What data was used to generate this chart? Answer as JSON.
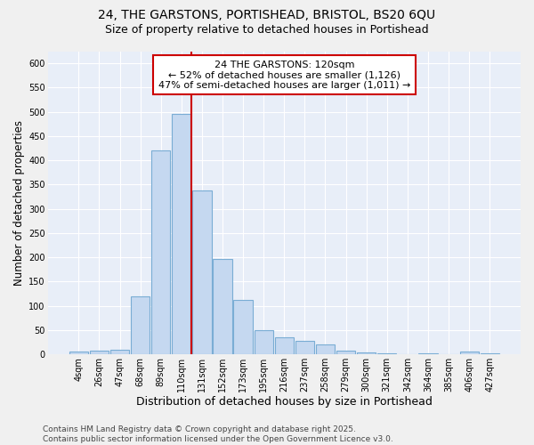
{
  "title1": "24, THE GARSTONS, PORTISHEAD, BRISTOL, BS20 6QU",
  "title2": "Size of property relative to detached houses in Portishead",
  "xlabel": "Distribution of detached houses by size in Portishead",
  "ylabel": "Number of detached properties",
  "categories": [
    "4sqm",
    "26sqm",
    "47sqm",
    "68sqm",
    "89sqm",
    "110sqm",
    "131sqm",
    "152sqm",
    "173sqm",
    "195sqm",
    "216sqm",
    "237sqm",
    "258sqm",
    "279sqm",
    "300sqm",
    "321sqm",
    "342sqm",
    "364sqm",
    "385sqm",
    "406sqm",
    "427sqm"
  ],
  "values": [
    5,
    8,
    10,
    120,
    420,
    495,
    337,
    196,
    112,
    50,
    35,
    28,
    20,
    8,
    4,
    2,
    1,
    3,
    1,
    5,
    3
  ],
  "bar_color": "#c5d8f0",
  "bar_edge_color": "#7aadd4",
  "vline_color": "#cc0000",
  "annotation_text": "24 THE GARSTONS: 120sqm\n← 52% of detached houses are smaller (1,126)\n47% of semi-detached houses are larger (1,011) →",
  "annotation_box_color": "#ffffff",
  "annotation_box_edge": "#cc0000",
  "ylim": [
    0,
    625
  ],
  "yticks": [
    0,
    50,
    100,
    150,
    200,
    250,
    300,
    350,
    400,
    450,
    500,
    550,
    600
  ],
  "plot_bg_color": "#e8eef8",
  "fig_bg_color": "#f0f0f0",
  "footer_text": "Contains HM Land Registry data © Crown copyright and database right 2025.\nContains public sector information licensed under the Open Government Licence v3.0.",
  "title1_fontsize": 10,
  "title2_fontsize": 9,
  "xlabel_fontsize": 9,
  "ylabel_fontsize": 8.5,
  "tick_fontsize": 7,
  "annotation_fontsize": 8,
  "footer_fontsize": 6.5
}
